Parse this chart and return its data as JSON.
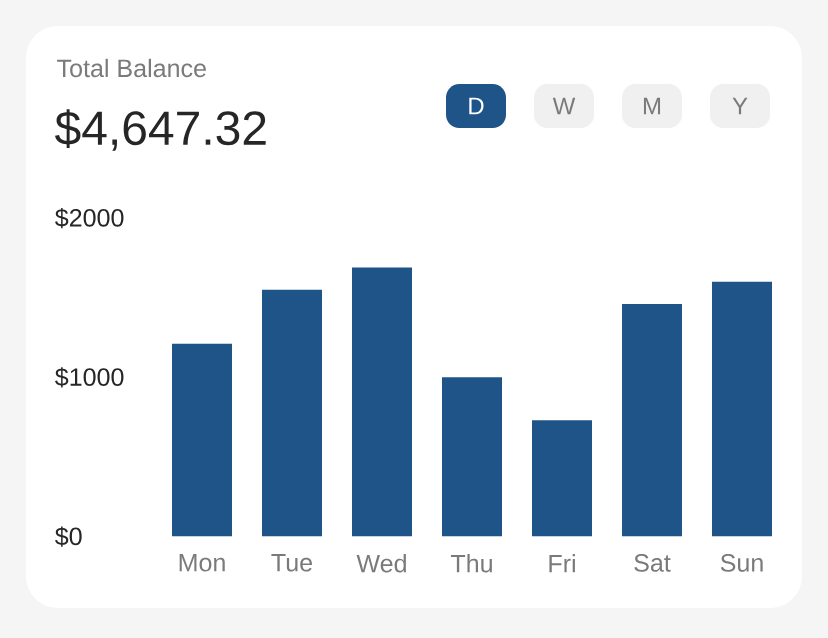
{
  "chart_data": {
    "type": "bar",
    "title": "Total Balance",
    "subtitle": "$4,647.32",
    "annotations": [
      "D",
      "W",
      "M",
      "Y"
    ],
    "categories": [
      "Mon",
      "Tue",
      "Wed",
      "Thu",
      "Fri",
      "Sat",
      "Sun"
    ],
    "values": [
      1210,
      1550,
      1690,
      1000,
      730,
      1460,
      1600
    ],
    "color": "#1f5489",
    "ylim": [
      0,
      2000
    ],
    "yticks": [
      {
        "value": 0,
        "label": "$0"
      },
      {
        "value": 1000,
        "label": "$1000"
      },
      {
        "value": 2000,
        "label": "$2000"
      }
    ]
  }
}
